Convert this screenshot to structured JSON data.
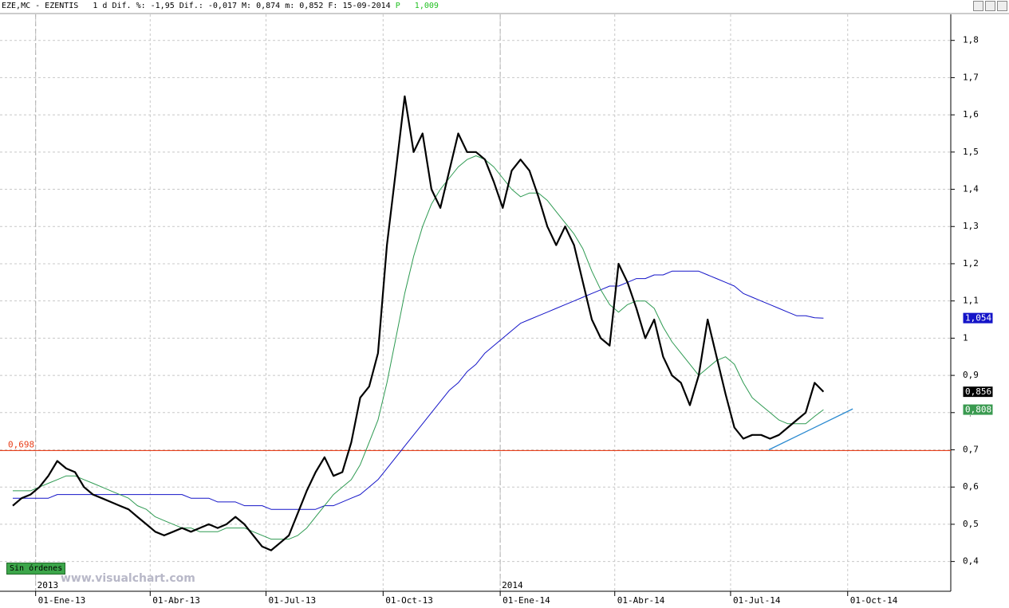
{
  "header": {
    "text": "EZE,MC - EZENTIS   1 d Dif. %: -1,95 Dif.: -0,017 M: 0,874 m: 0,852 F: 15-09-2014",
    "p_label": "P",
    "p_value": "1,009"
  },
  "status": "Sin órdenes",
  "watermark": "www.visualchart.com",
  "chart_data": {
    "type": "line",
    "x": [
      "2012-12-14",
      "2012-12-21",
      "2012-12-28",
      "2013-01-04",
      "2013-01-11",
      "2013-01-18",
      "2013-01-25",
      "2013-02-01",
      "2013-02-08",
      "2013-02-15",
      "2013-02-22",
      "2013-03-01",
      "2013-03-08",
      "2013-03-15",
      "2013-03-22",
      "2013-03-29",
      "2013-04-05",
      "2013-04-12",
      "2013-04-19",
      "2013-04-26",
      "2013-05-03",
      "2013-05-10",
      "2013-05-17",
      "2013-05-24",
      "2013-05-31",
      "2013-06-07",
      "2013-06-14",
      "2013-06-21",
      "2013-06-28",
      "2013-07-05",
      "2013-07-12",
      "2013-07-19",
      "2013-07-26",
      "2013-08-02",
      "2013-08-09",
      "2013-08-16",
      "2013-08-23",
      "2013-08-30",
      "2013-09-06",
      "2013-09-13",
      "2013-09-20",
      "2013-09-27",
      "2013-10-04",
      "2013-10-11",
      "2013-10-18",
      "2013-10-25",
      "2013-11-01",
      "2013-11-08",
      "2013-11-15",
      "2013-11-22",
      "2013-11-29",
      "2013-12-06",
      "2013-12-13",
      "2013-12-20",
      "2013-12-27",
      "2014-01-03",
      "2014-01-10",
      "2014-01-17",
      "2014-01-24",
      "2014-01-31",
      "2014-02-07",
      "2014-02-14",
      "2014-02-21",
      "2014-02-28",
      "2014-03-07",
      "2014-03-14",
      "2014-03-21",
      "2014-03-28",
      "2014-04-04",
      "2014-04-11",
      "2014-04-18",
      "2014-04-25",
      "2014-05-02",
      "2014-05-09",
      "2014-05-16",
      "2014-05-23",
      "2014-05-30",
      "2014-06-06",
      "2014-06-13",
      "2014-06-20",
      "2014-06-27",
      "2014-07-04",
      "2014-07-11",
      "2014-07-18",
      "2014-07-25",
      "2014-08-01",
      "2014-08-08",
      "2014-08-15",
      "2014-08-22",
      "2014-08-29",
      "2014-09-05",
      "2014-09-12"
    ],
    "series": [
      {
        "color": "#000000",
        "width": 2.2,
        "last_value": {
          "value": 0.856,
          "label": "0,856"
        },
        "label_fill": "#000000",
        "values": [
          0.55,
          0.57,
          0.58,
          0.6,
          0.63,
          0.67,
          0.65,
          0.64,
          0.6,
          0.58,
          0.57,
          0.56,
          0.55,
          0.54,
          0.52,
          0.5,
          0.48,
          0.47,
          0.48,
          0.49,
          0.48,
          0.49,
          0.5,
          0.49,
          0.5,
          0.52,
          0.5,
          0.47,
          0.44,
          0.43,
          0.45,
          0.47,
          0.53,
          0.59,
          0.64,
          0.68,
          0.63,
          0.64,
          0.72,
          0.84,
          0.87,
          0.96,
          1.25,
          1.45,
          1.65,
          1.5,
          1.55,
          1.4,
          1.35,
          1.45,
          1.55,
          1.5,
          1.5,
          1.48,
          1.42,
          1.35,
          1.45,
          1.48,
          1.45,
          1.38,
          1.3,
          1.25,
          1.3,
          1.25,
          1.15,
          1.05,
          1.0,
          0.98,
          1.2,
          1.15,
          1.08,
          1.0,
          1.05,
          0.95,
          0.9,
          0.88,
          0.82,
          0.9,
          1.05,
          0.95,
          0.85,
          0.76,
          0.73,
          0.74,
          0.74,
          0.73,
          0.74,
          0.76,
          0.78,
          0.8,
          0.88,
          0.856
        ]
      },
      {
        "color": "#2e9a52",
        "width": 1,
        "last_value": {
          "value": 0.808,
          "label": "0,808"
        },
        "label_fill": "#3a9a50",
        "values": [
          0.59,
          0.59,
          0.59,
          0.6,
          0.61,
          0.62,
          0.63,
          0.63,
          0.62,
          0.61,
          0.6,
          0.59,
          0.58,
          0.57,
          0.55,
          0.54,
          0.52,
          0.51,
          0.5,
          0.49,
          0.49,
          0.48,
          0.48,
          0.48,
          0.49,
          0.49,
          0.49,
          0.48,
          0.47,
          0.46,
          0.46,
          0.46,
          0.47,
          0.49,
          0.52,
          0.55,
          0.58,
          0.6,
          0.62,
          0.66,
          0.72,
          0.78,
          0.88,
          1.0,
          1.12,
          1.22,
          1.3,
          1.36,
          1.4,
          1.43,
          1.46,
          1.48,
          1.49,
          1.48,
          1.46,
          1.43,
          1.4,
          1.38,
          1.39,
          1.39,
          1.37,
          1.34,
          1.31,
          1.28,
          1.24,
          1.18,
          1.13,
          1.09,
          1.07,
          1.09,
          1.1,
          1.1,
          1.08,
          1.03,
          0.99,
          0.96,
          0.93,
          0.9,
          0.92,
          0.94,
          0.95,
          0.93,
          0.88,
          0.84,
          0.82,
          0.8,
          0.78,
          0.77,
          0.77,
          0.77,
          0.79,
          0.808
        ]
      },
      {
        "color": "#1414c8",
        "width": 1,
        "last_value": {
          "value": 1.054,
          "label": "1,054"
        },
        "label_fill": "#1414c8",
        "values": [
          0.57,
          0.57,
          0.57,
          0.57,
          0.57,
          0.58,
          0.58,
          0.58,
          0.58,
          0.58,
          0.58,
          0.58,
          0.58,
          0.58,
          0.58,
          0.58,
          0.58,
          0.58,
          0.58,
          0.58,
          0.57,
          0.57,
          0.57,
          0.56,
          0.56,
          0.56,
          0.55,
          0.55,
          0.55,
          0.54,
          0.54,
          0.54,
          0.54,
          0.54,
          0.54,
          0.55,
          0.55,
          0.56,
          0.57,
          0.58,
          0.6,
          0.62,
          0.65,
          0.68,
          0.71,
          0.74,
          0.77,
          0.8,
          0.83,
          0.86,
          0.88,
          0.91,
          0.93,
          0.96,
          0.98,
          1.0,
          1.02,
          1.04,
          1.05,
          1.06,
          1.07,
          1.08,
          1.09,
          1.1,
          1.11,
          1.12,
          1.13,
          1.14,
          1.14,
          1.15,
          1.16,
          1.16,
          1.17,
          1.17,
          1.18,
          1.18,
          1.18,
          1.18,
          1.17,
          1.16,
          1.15,
          1.14,
          1.12,
          1.11,
          1.1,
          1.09,
          1.08,
          1.07,
          1.06,
          1.06,
          1.055,
          1.054
        ]
      }
    ],
    "trendline": {
      "color": "#2a8ad0",
      "x": [
        "2014-07-31",
        "2014-10-05"
      ],
      "values": [
        0.7,
        0.81
      ]
    },
    "hline": {
      "value": 0.698,
      "label": "0,698",
      "color": "#e8401c"
    },
    "xlim": [
      "2012-12-04",
      "2014-12-21"
    ],
    "xticks": [
      {
        "value": "2013-01-01",
        "label": "01-Ene-13"
      },
      {
        "value": "2013-04-01",
        "label": "01-Abr-13"
      },
      {
        "value": "2013-07-01",
        "label": "01-Jul-13"
      },
      {
        "value": "2013-10-01",
        "label": "01-Oct-13"
      },
      {
        "value": "2014-01-01",
        "label": "01-Ene-14"
      },
      {
        "value": "2014-04-01",
        "label": "01-Abr-14"
      },
      {
        "value": "2014-07-01",
        "label": "01-Jul-14"
      },
      {
        "value": "2014-10-01",
        "label": "01-Oct-14"
      }
    ],
    "year_ticks": [
      {
        "value": "2013-01-01",
        "label": "2013"
      },
      {
        "value": "2014-01-01",
        "label": "2014"
      }
    ],
    "ylim": [
      0.32,
      1.87
    ],
    "yticks": [
      {
        "value": 0.4,
        "label": "0,4"
      },
      {
        "value": 0.5,
        "label": "0,5"
      },
      {
        "value": 0.6,
        "label": "0,6"
      },
      {
        "value": 0.7,
        "label": "0,7"
      },
      {
        "value": 0.8,
        "label": "0,8"
      },
      {
        "value": 0.9,
        "label": "0,9"
      },
      1,
      {
        "value": 1.1,
        "label": "1,1"
      },
      {
        "value": 1.2,
        "label": "1,2"
      },
      {
        "value": 1.3,
        "label": "1,3"
      },
      {
        "value": 1.4,
        "label": "1,4"
      },
      {
        "value": 1.5,
        "label": "1,5"
      },
      {
        "value": 1.6,
        "label": "1,6"
      },
      {
        "value": 1.7,
        "label": "1,7"
      },
      {
        "value": 1.8,
        "label": "1,8"
      }
    ],
    "grid": true
  }
}
